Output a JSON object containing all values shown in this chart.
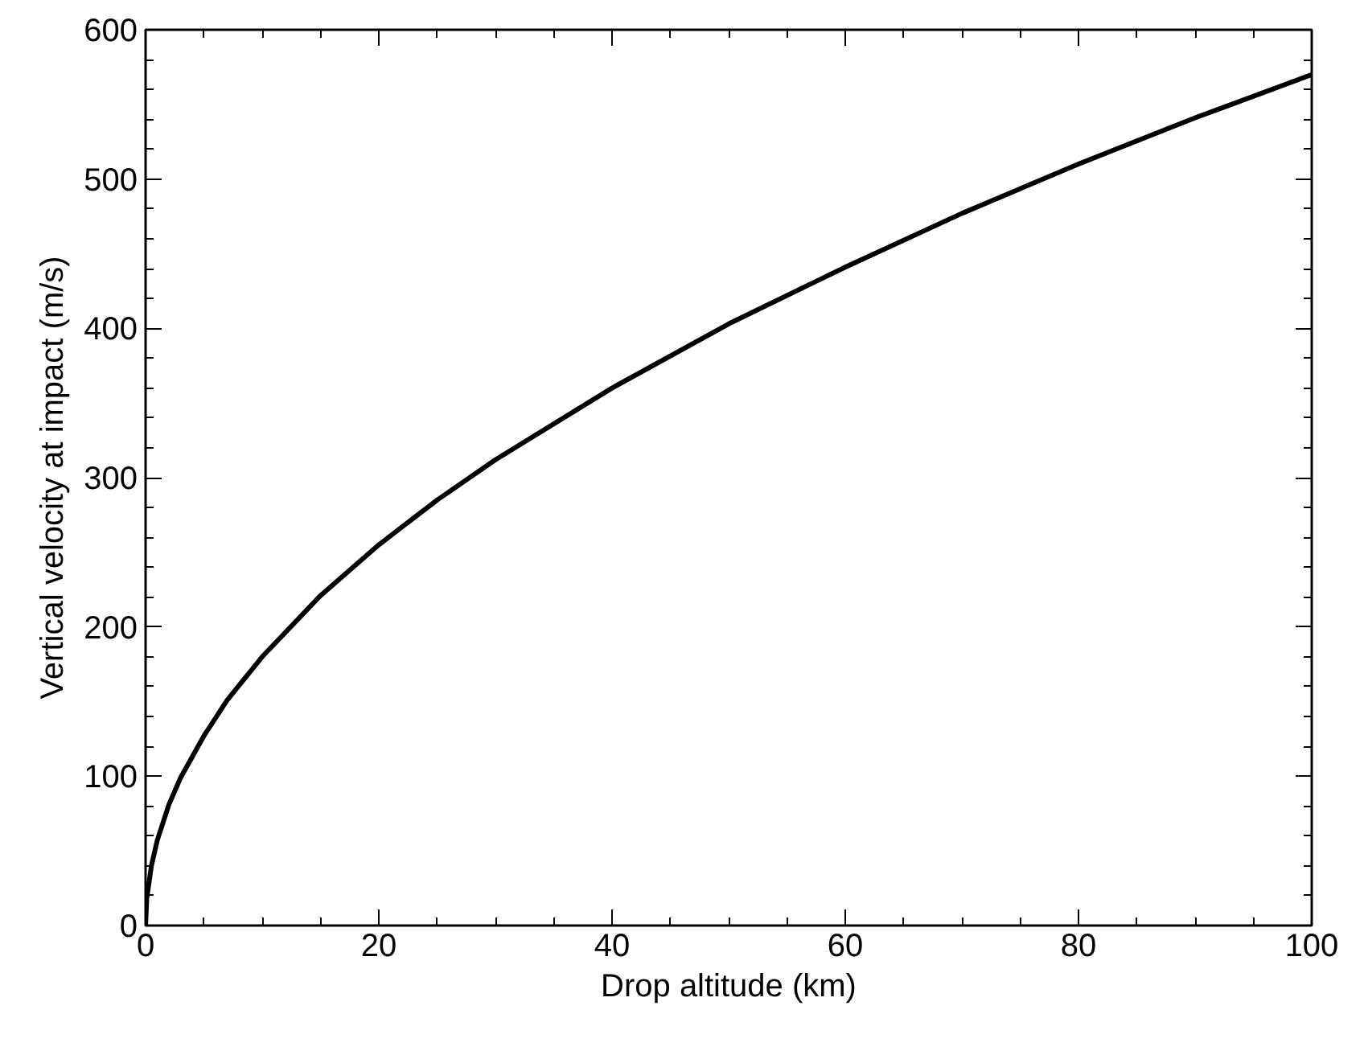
{
  "chart_data": {
    "type": "line",
    "xlabel": "Drop altitude (km)",
    "ylabel": "Vertical velocity at impact (m/s)",
    "x": [
      0,
      0.1,
      0.5,
      1,
      2,
      3,
      5,
      7,
      10,
      15,
      20,
      25,
      30,
      40,
      50,
      60,
      70,
      80,
      90,
      100
    ],
    "series": [
      {
        "color": "#000000",
        "values": [
          0,
          18,
          40,
          57,
          81,
          99,
          127,
          151,
          180,
          221,
          255,
          285,
          312,
          360,
          403,
          441,
          477,
          510,
          541,
          570
        ]
      }
    ],
    "xlim": [
      0,
      100
    ],
    "xticks": [
      0,
      20,
      40,
      60,
      80,
      100
    ],
    "ylim": [
      0,
      600
    ],
    "yticks": [
      0,
      100,
      200,
      300,
      400,
      500,
      600
    ],
    "grid": false,
    "marker": "none",
    "line_style": "solid"
  }
}
